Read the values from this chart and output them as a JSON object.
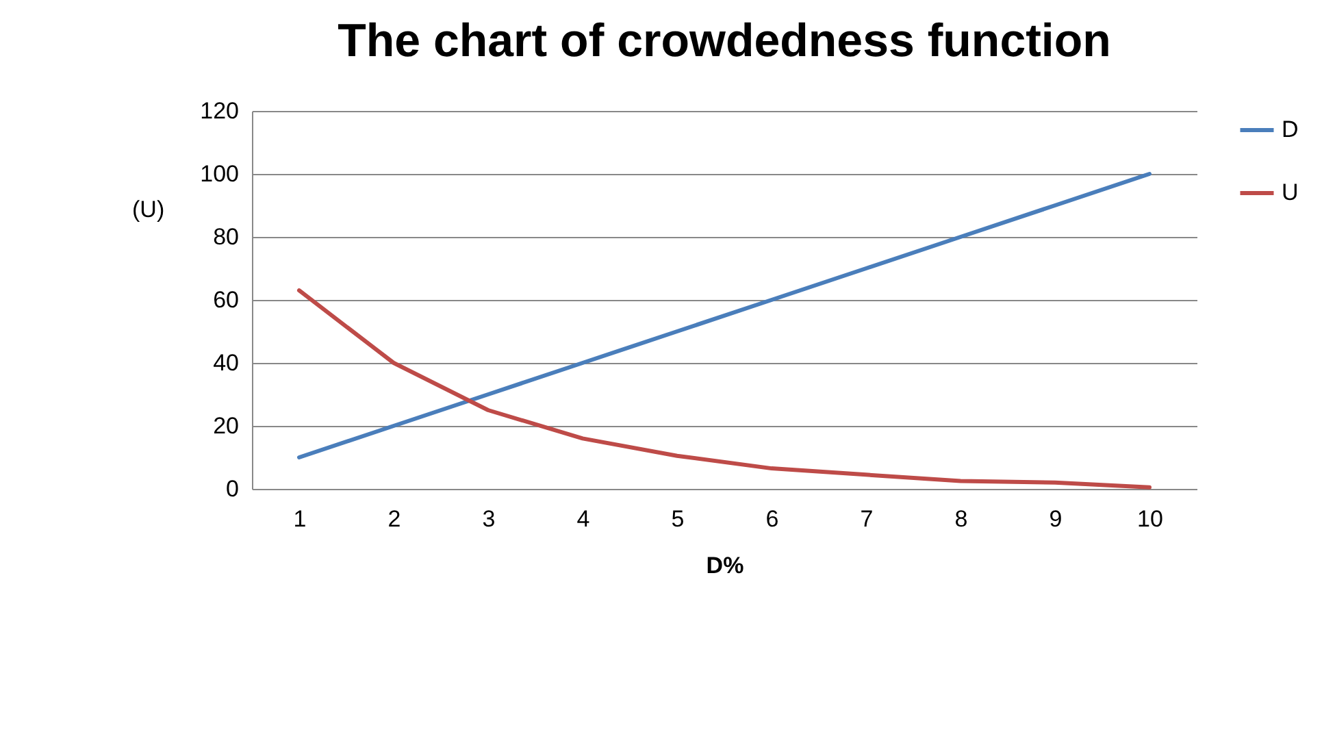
{
  "chart_data": {
    "type": "line",
    "title": "The chart of crowdedness function",
    "xlabel": "D%",
    "ylabel": "(U)",
    "categories": [
      "1",
      "2",
      "3",
      "4",
      "5",
      "6",
      "7",
      "8",
      "9",
      "10"
    ],
    "series": [
      {
        "name": "D",
        "color": "#4a7ebb",
        "values": [
          10,
          20,
          30,
          40,
          50,
          60,
          70,
          80,
          90,
          100
        ]
      },
      {
        "name": "U",
        "color": "#be4b48",
        "values": [
          63,
          40,
          25,
          16,
          10.5,
          6.5,
          4.5,
          2.5,
          2,
          0.5
        ]
      }
    ],
    "ylim": [
      0,
      120
    ],
    "yticks": [
      0,
      20,
      40,
      60,
      80,
      100,
      120
    ],
    "grid": "y",
    "legend": "right",
    "marker": "none",
    "line_style": "solid"
  }
}
